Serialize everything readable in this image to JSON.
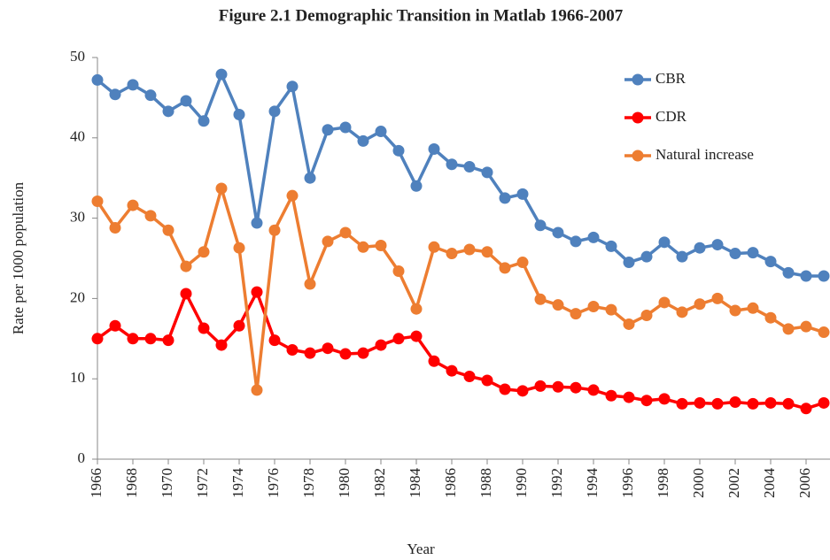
{
  "chart_data": {
    "type": "line",
    "title": "Figure 2.1 Demographic Transition in Matlab 1966-2007",
    "x_label": "Year",
    "y_label": "Rate per 1000 population",
    "x": [
      1966,
      1967,
      1968,
      1969,
      1970,
      1971,
      1972,
      1973,
      1974,
      1975,
      1976,
      1977,
      1978,
      1979,
      1980,
      1981,
      1982,
      1983,
      1984,
      1985,
      1986,
      1987,
      1988,
      1989,
      1990,
      1991,
      1992,
      1993,
      1994,
      1995,
      1996,
      1997,
      1998,
      1999,
      2000,
      2001,
      2002,
      2003,
      2004,
      2005,
      2006,
      2007
    ],
    "xlim": [
      1966,
      2007
    ],
    "xticks": [
      1966,
      1968,
      1970,
      1972,
      1974,
      1976,
      1978,
      1980,
      1982,
      1984,
      1986,
      1988,
      1990,
      1992,
      1994,
      1996,
      1998,
      2000,
      2002,
      2004,
      2006
    ],
    "ylim": [
      0,
      50
    ],
    "yticks": [
      0,
      10,
      20,
      30,
      40,
      50
    ],
    "grid": false,
    "legend": "top-right",
    "series": [
      {
        "name": "CBR",
        "color": "#4f81bd",
        "values": [
          47.2,
          45.4,
          46.6,
          45.3,
          43.3,
          44.6,
          42.1,
          47.9,
          42.9,
          29.4,
          43.3,
          46.4,
          35.0,
          41.0,
          41.3,
          39.6,
          40.8,
          38.4,
          34.0,
          38.6,
          36.7,
          36.4,
          35.7,
          32.5,
          33.0,
          29.1,
          28.2,
          27.1,
          27.6,
          26.5,
          24.5,
          25.2,
          27.0,
          25.2,
          26.3,
          26.7,
          25.6,
          25.7,
          24.6,
          23.2,
          22.8,
          22.8
        ]
      },
      {
        "name": "CDR",
        "color": "#ff0000",
        "values": [
          15.0,
          16.6,
          15.0,
          15.0,
          14.8,
          20.6,
          16.3,
          14.2,
          16.6,
          20.8,
          14.8,
          13.6,
          13.2,
          13.8,
          13.1,
          13.2,
          14.2,
          15.0,
          15.3,
          12.2,
          11.0,
          10.3,
          9.8,
          8.7,
          8.5,
          9.1,
          9.0,
          8.9,
          8.6,
          7.9,
          7.7,
          7.3,
          7.5,
          6.9,
          7.0,
          6.9,
          7.1,
          6.9,
          7.0,
          6.9,
          6.3,
          7.0
        ]
      },
      {
        "name": "Natural increase",
        "color": "#ed7d31",
        "values": [
          32.1,
          28.8,
          31.6,
          30.3,
          28.5,
          24.0,
          25.8,
          33.7,
          26.3,
          8.6,
          28.5,
          32.8,
          21.8,
          27.1,
          28.2,
          26.4,
          26.6,
          23.4,
          18.7,
          26.4,
          25.6,
          26.1,
          25.8,
          23.8,
          24.5,
          19.9,
          19.2,
          18.1,
          19.0,
          18.6,
          16.8,
          17.9,
          19.5,
          18.3,
          19.3,
          20.0,
          18.5,
          18.8,
          17.6,
          16.2,
          16.5,
          15.8
        ]
      }
    ]
  }
}
